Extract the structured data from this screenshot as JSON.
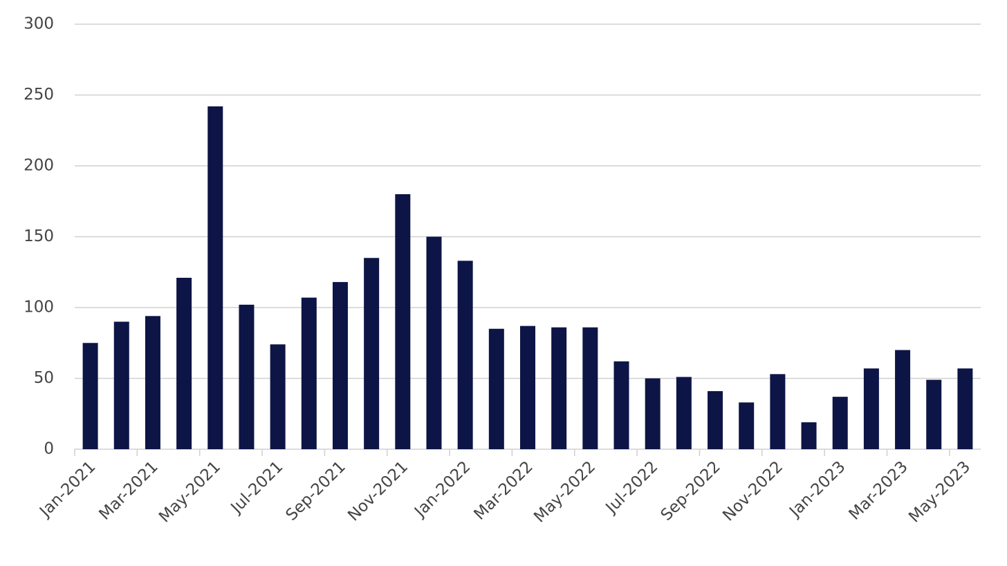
{
  "chart_data": {
    "type": "bar",
    "categories": [
      "Jan-2021",
      null,
      "Mar-2021",
      null,
      "May-2021",
      null,
      "Jul-2021",
      null,
      "Sep-2021",
      null,
      "Nov-2021",
      null,
      "Jan-2022",
      null,
      "Mar-2022",
      null,
      "May-2022",
      null,
      "Jul-2022",
      null,
      "Sep-2022",
      null,
      "Nov-2022",
      null,
      "Jan-2023",
      null,
      "Mar-2023",
      null,
      "May-2023"
    ],
    "values": [
      75,
      90,
      94,
      121,
      242,
      102,
      74,
      107,
      118,
      135,
      180,
      150,
      133,
      85,
      87,
      86,
      86,
      62,
      50,
      51,
      41,
      33,
      53,
      19,
      37,
      57,
      70,
      49,
      57
    ],
    "color": "#0d1546",
    "ylim": [
      0,
      300
    ],
    "yticks": [
      0,
      50,
      100,
      150,
      200,
      250,
      300
    ],
    "grid": true
  }
}
